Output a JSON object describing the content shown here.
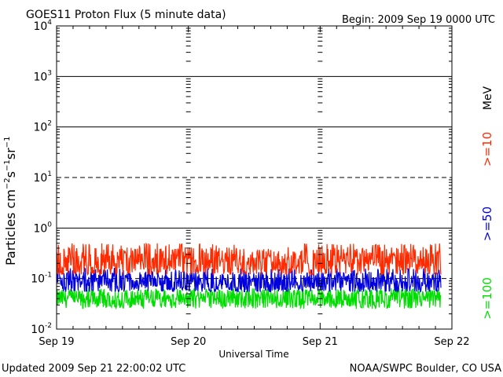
{
  "header": {
    "title": "GOES11 Proton Flux (5 minute data)",
    "begin": "Begin: 2009 Sep 19 0000 UTC"
  },
  "footer": {
    "updated": "Updated 2009 Sep 21 22:00:02 UTC",
    "source": "NOAA/SWPC Boulder, CO USA"
  },
  "chart_data": {
    "type": "line",
    "title": "GOES11 Proton Flux (5 minute data)",
    "xlabel": "Universal Time",
    "ylabel": "Particles cm⁻²s⁻¹sr⁻¹",
    "yscale": "log",
    "ylim": [
      0.01,
      10000
    ],
    "y_ticks": [
      {
        "value": 0.01,
        "base": "10",
        "exp": "-2"
      },
      {
        "value": 0.1,
        "base": "10",
        "exp": "-1"
      },
      {
        "value": 1,
        "base": "10",
        "exp": "0"
      },
      {
        "value": 10,
        "base": "10",
        "exp": "1"
      },
      {
        "value": 100,
        "base": "10",
        "exp": "2"
      },
      {
        "value": 1000,
        "base": "10",
        "exp": "3"
      },
      {
        "value": 10000,
        "base": "10",
        "exp": "4"
      }
    ],
    "x_ticks": [
      "Sep 19",
      "Sep 20",
      "Sep 21",
      "Sep 22"
    ],
    "xlim_days": [
      0,
      3
    ],
    "data_end_day": 2.917,
    "grid": {
      "solid_levels": [
        1,
        100,
        1000
      ],
      "dashed_levels": [
        10,
        0.1
      ],
      "thresholds_labelled": true
    },
    "legend_position": "right, vertical",
    "legend_unit": "MeV",
    "series": [
      {
        "name": ">=10",
        "color": "#ff2a00",
        "baseline": 0.22,
        "min": 0.12,
        "max": 0.5
      },
      {
        "name": ">=50",
        "color": "#0000dd",
        "baseline": 0.085,
        "min": 0.055,
        "max": 0.16
      },
      {
        "name": ">=100",
        "color": "#00dd00",
        "baseline": 0.04,
        "min": 0.025,
        "max": 0.065
      }
    ]
  }
}
